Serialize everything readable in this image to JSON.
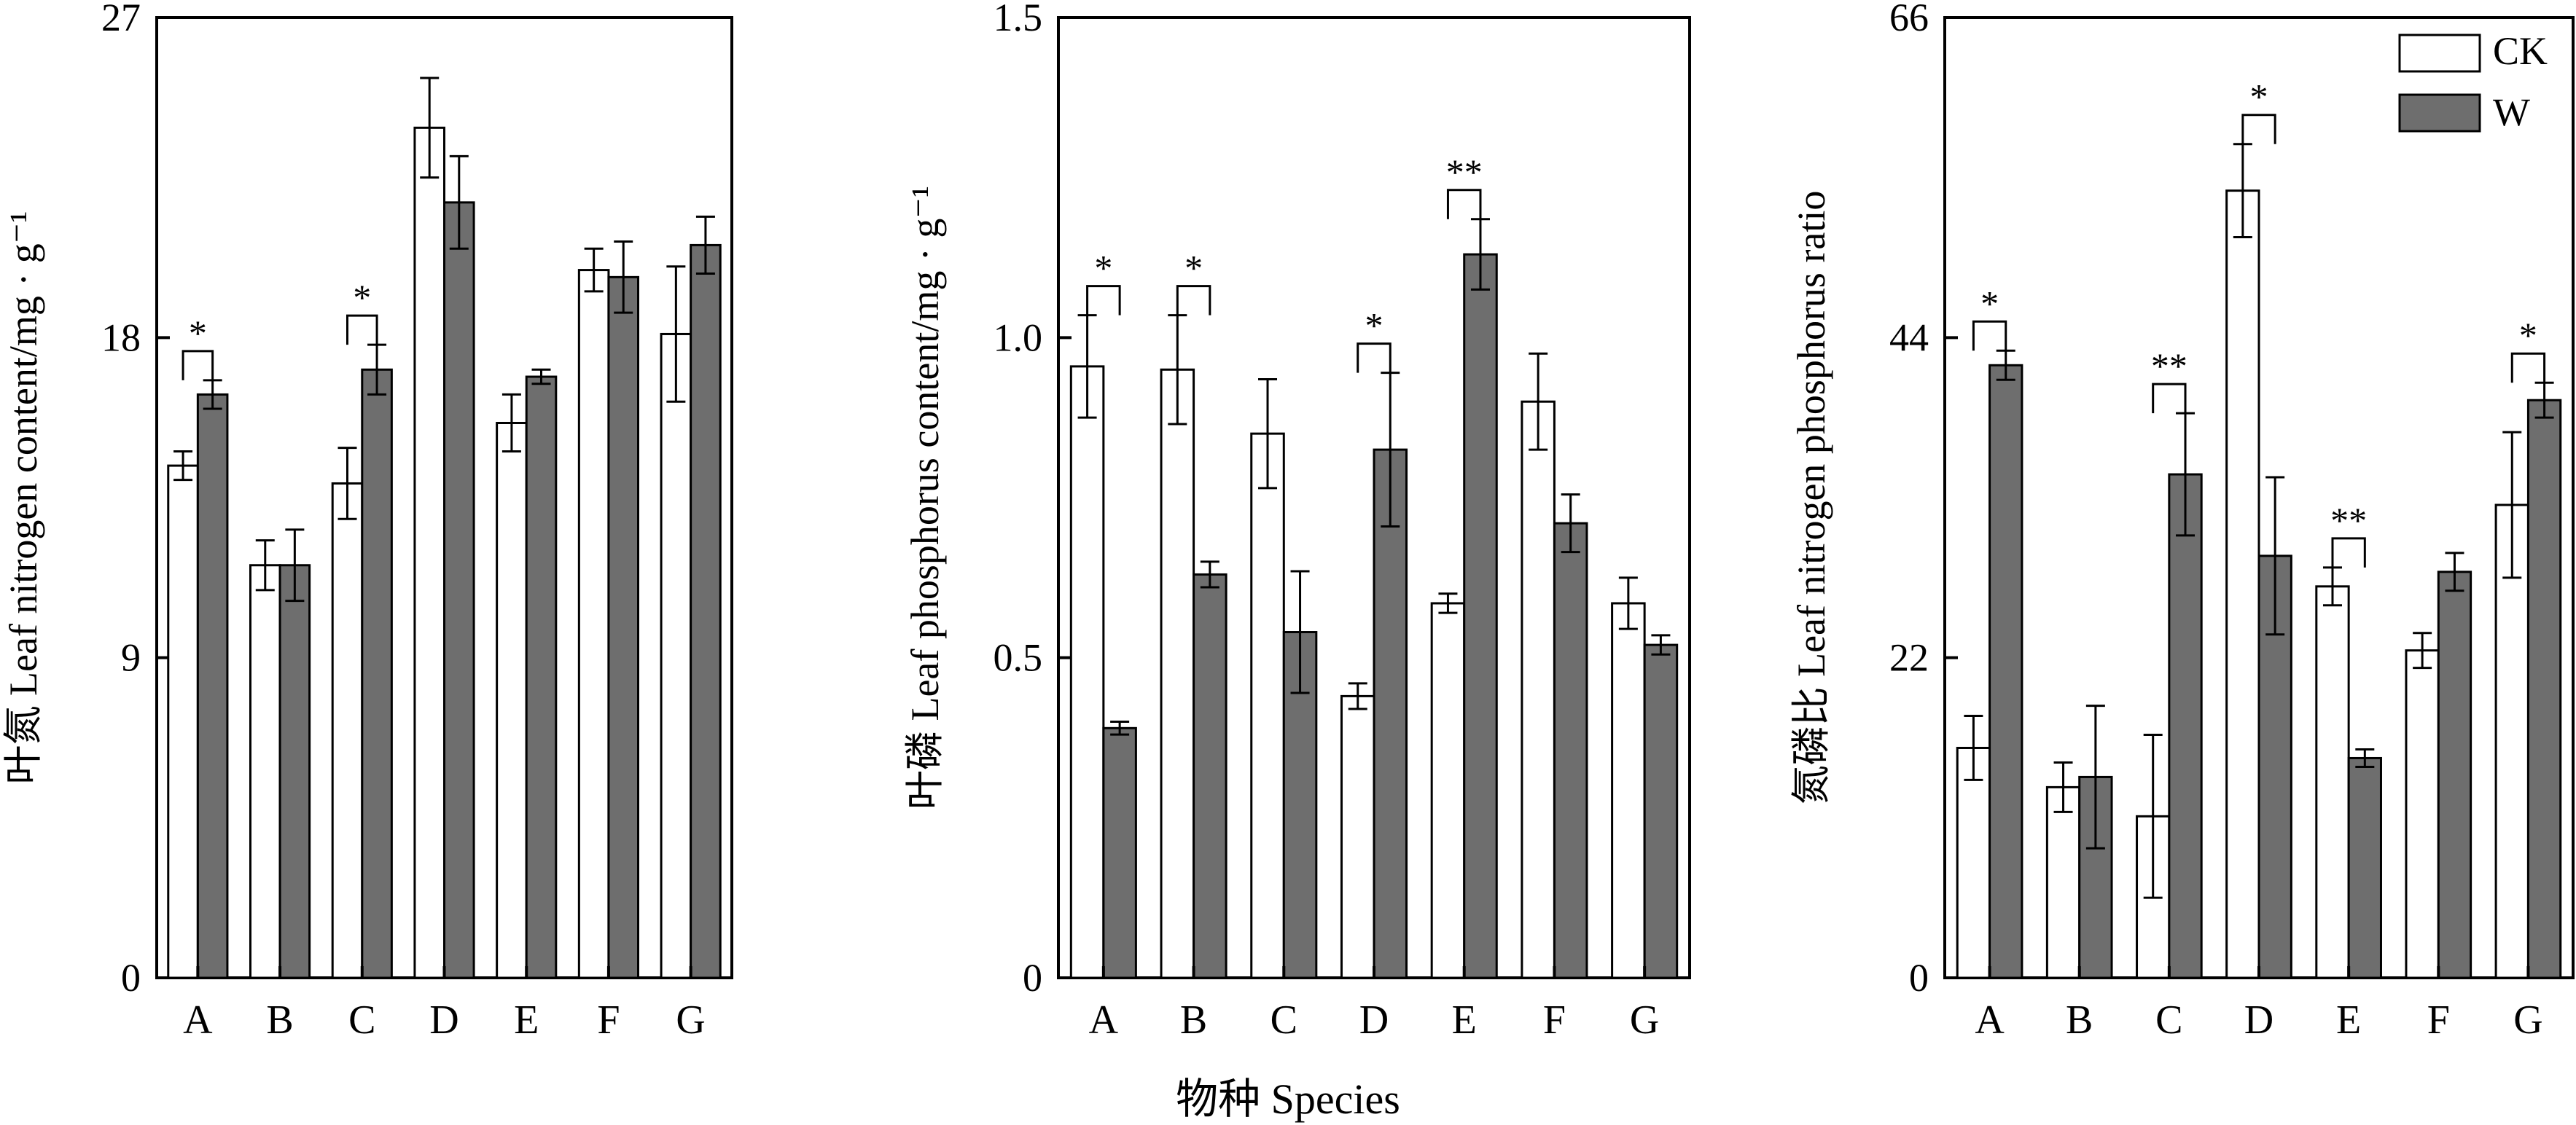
{
  "chart_data": [
    {
      "type": "bar",
      "ylabel": "叶氮 Leaf nitrogen content/mg · g⁻¹",
      "ylim": [
        0,
        27
      ],
      "yticks": [
        "0",
        "9",
        "18",
        "27"
      ],
      "categories": [
        "A",
        "B",
        "C",
        "D",
        "E",
        "F",
        "G"
      ],
      "series": [
        {
          "name": "CK",
          "values": [
            14.4,
            11.6,
            13.9,
            23.9,
            15.6,
            19.9,
            18.1
          ],
          "errors": [
            0.4,
            0.7,
            1.0,
            1.4,
            0.8,
            0.6,
            1.9
          ]
        },
        {
          "name": "W",
          "values": [
            16.4,
            11.6,
            17.1,
            21.8,
            16.9,
            19.7,
            20.6
          ],
          "errors": [
            0.4,
            1.0,
            0.7,
            1.3,
            0.2,
            1.0,
            0.8
          ]
        }
      ],
      "significance": [
        {
          "category": "A",
          "label": "*"
        },
        {
          "category": "C",
          "label": "*"
        }
      ]
    },
    {
      "type": "bar",
      "ylabel": "叶磷 Leaf phosphorus content/mg · g⁻¹",
      "ylim": [
        0,
        1.5
      ],
      "yticks": [
        "0",
        "0.5",
        "1.0",
        "1.5"
      ],
      "categories": [
        "A",
        "B",
        "C",
        "D",
        "E",
        "F",
        "G"
      ],
      "series": [
        {
          "name": "CK",
          "values": [
            0.955,
            0.95,
            0.85,
            0.44,
            0.585,
            0.9,
            0.585
          ],
          "errors": [
            0.08,
            0.085,
            0.085,
            0.02,
            0.015,
            0.075,
            0.04
          ]
        },
        {
          "name": "W",
          "values": [
            0.39,
            0.63,
            0.54,
            0.825,
            1.13,
            0.71,
            0.52
          ],
          "errors": [
            0.01,
            0.02,
            0.095,
            0.12,
            0.055,
            0.045,
            0.015
          ]
        }
      ],
      "significance": [
        {
          "category": "A",
          "label": "*"
        },
        {
          "category": "B",
          "label": "*"
        },
        {
          "category": "D",
          "label": "*"
        },
        {
          "category": "E",
          "label": "**"
        }
      ]
    },
    {
      "type": "bar",
      "ylabel": "氮磷比 Leaf nitrogen phosphorus ratio",
      "ylim": [
        0,
        66
      ],
      "yticks": [
        "0",
        "22",
        "44",
        "66"
      ],
      "categories": [
        "A",
        "B",
        "C",
        "D",
        "E",
        "F",
        "G"
      ],
      "series": [
        {
          "name": "CK",
          "values": [
            15.8,
            13.1,
            11.1,
            54.1,
            26.9,
            22.5,
            32.5
          ],
          "errors": [
            2.2,
            1.7,
            5.6,
            3.2,
            1.3,
            1.2,
            5.0
          ]
        },
        {
          "name": "W",
          "values": [
            42.1,
            13.8,
            34.6,
            29.0,
            15.1,
            27.9,
            39.7
          ],
          "errors": [
            1.0,
            4.9,
            4.2,
            5.4,
            0.6,
            1.3,
            1.2
          ]
        }
      ],
      "significance": [
        {
          "category": "A",
          "label": "*"
        },
        {
          "category": "C",
          "label": "**"
        },
        {
          "category": "D",
          "label": "*"
        },
        {
          "category": "E",
          "label": "**"
        },
        {
          "category": "G",
          "label": "*"
        }
      ]
    }
  ],
  "legend": {
    "placement": "top-right",
    "items": [
      {
        "name": "CK",
        "fill": "#ffffff"
      },
      {
        "name": "W",
        "fill": "#6e6e6e"
      }
    ]
  },
  "xlabel": "物种 Species",
  "colors": {
    "ck_fill": "#ffffff",
    "w_fill": "#6e6e6e",
    "stroke": "#000000"
  }
}
